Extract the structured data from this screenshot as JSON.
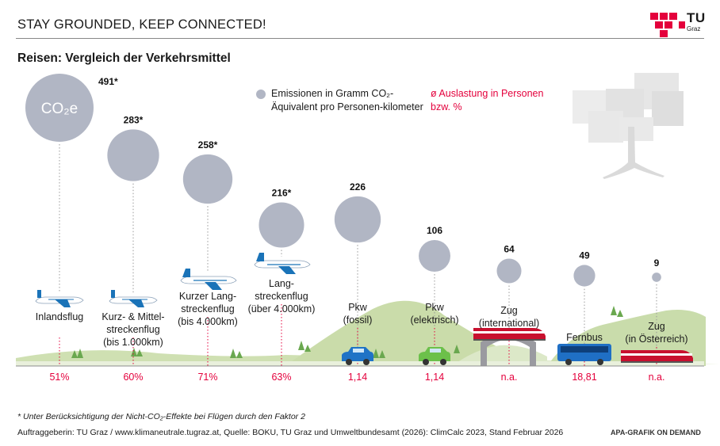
{
  "header": {
    "title": "STAY GROUNDED,  KEEP CONNECTED!",
    "logo_text": "TU",
    "logo_sub": "Graz"
  },
  "subtitle": "Reisen: Vergleich der Verkehrsmittel",
  "legend": {
    "emissions_label": "Emissionen in Gramm CO₂-Äquivalent pro Personen-kilometer",
    "load_label": "ø Auslastung in Personen bzw. %"
  },
  "bubble_inner_label": "CO₂e",
  "colors": {
    "bubble": "#b1b6c4",
    "accent_red": "#e4003c",
    "hill": "#c9dcaa",
    "ground": "#e9f0dc"
  },
  "chart_data": {
    "type": "bubble",
    "title": "Reisen: Vergleich der Verkehrsmittel",
    "value_unit": "Emissionen in Gramm CO₂-Äquivalent pro Personenkilometer",
    "categories": [
      "Inlandsflug",
      "Kurz- & Mittelstreckenflug (bis 1.000km)",
      "Kurzer Langstreckenflug (bis 4.000km)",
      "Langstreckenflug (über 4.000km)",
      "Pkw (fossil)",
      "Pkw (elektrisch)",
      "Zug (international)",
      "Fernbus",
      "Zug (in Österreich)"
    ],
    "label_lines": [
      [
        "Inlandsflug"
      ],
      [
        "Kurz- & Mittel-",
        "streckenflug",
        "(bis 1.000km)"
      ],
      [
        "Kurzer Lang-",
        "streckenflug",
        "(bis 4.000km)"
      ],
      [
        "Lang-",
        "streckenflug",
        "(über 4.000km)"
      ],
      [
        "Pkw",
        "(fossil)"
      ],
      [
        "Pkw",
        "(elektrisch)"
      ],
      [
        "Zug",
        "(international)"
      ],
      [
        "Fernbus"
      ],
      [
        "Zug",
        "(in Österreich)"
      ]
    ],
    "values": [
      491,
      283,
      258,
      216,
      226,
      106,
      64,
      49,
      9
    ],
    "value_labels": [
      "491*",
      "283*",
      "258*",
      "216*",
      "226",
      "106",
      "64",
      "49",
      "9"
    ],
    "auslastung": [
      "51%",
      "60%",
      "71%",
      "63%",
      "1,14",
      "1,14",
      "n.a.",
      "18,81",
      "n.a."
    ],
    "icons": [
      "small-plane-icon",
      "small-plane-icon",
      "jet-plane-icon",
      "jet-plane-icon",
      "blue-car-icon",
      "green-car-icon",
      "red-train-icon",
      "blue-bus-icon",
      "red-train-icon"
    ]
  },
  "footnotes": {
    "note": "* Unter Berücksichtigung der Nicht-CO₂-Effekte bei Flügen durch den Faktor 2",
    "source": "Auftraggeberin: TU Graz / www.klimaneutrale.tugraz.at, Quelle: BOKU, TU Graz und Umweltbundesamt (2026): ClimCalc 2023, Stand Februar 2026",
    "credit": "APA-GRAFIK ON DEMAND"
  }
}
